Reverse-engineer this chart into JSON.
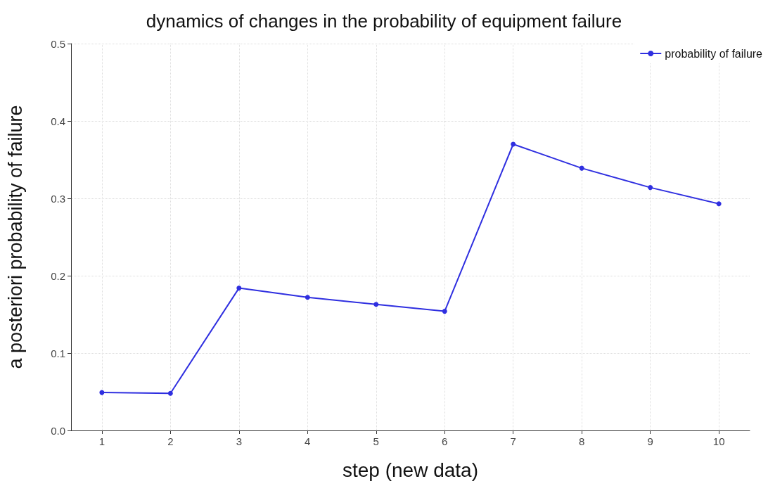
{
  "chart_data": {
    "type": "line",
    "title": "dynamics of changes in the probability of equipment failure",
    "xlabel": "step (new data)",
    "ylabel": "a posteriori probability of failure",
    "x": [
      1,
      2,
      3,
      4,
      5,
      6,
      7,
      8,
      9,
      10
    ],
    "series": [
      {
        "name": "probability of failure",
        "color": "#2f2fe0",
        "values": [
          0.049,
          0.048,
          0.184,
          0.172,
          0.163,
          0.154,
          0.37,
          0.339,
          0.314,
          0.293
        ]
      }
    ],
    "xlim": [
      0.55,
      10.45
    ],
    "xticks": [
      1,
      2,
      3,
      4,
      5,
      6,
      7,
      8,
      9,
      10
    ],
    "ylim": [
      0,
      0.5
    ],
    "yticks": [
      {
        "value": 0,
        "label": "0.0"
      },
      0.1,
      0.2,
      0.3,
      0.4,
      0.5
    ],
    "grid": true,
    "legend": "top right",
    "marker": "circle",
    "line_style": "solid"
  }
}
